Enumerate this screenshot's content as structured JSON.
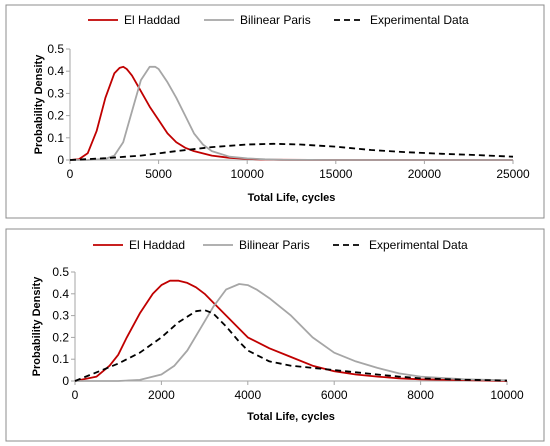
{
  "chart_data": [
    {
      "type": "line",
      "title": "",
      "xlabel": "Total Life, cycles",
      "ylabel": "Probability Density",
      "xlim": [
        0,
        25000
      ],
      "ylim": [
        0,
        0.5
      ],
      "xticks": [
        0,
        5000,
        10000,
        15000,
        20000,
        25000
      ],
      "yticks": [
        0,
        0.1,
        0.2,
        0.3,
        0.4,
        0.5
      ],
      "xtick_labels": [
        "0",
        "5000",
        "10000",
        "15000",
        "20000",
        "25000"
      ],
      "ytick_labels": [
        "0",
        "0.1",
        "0.2",
        "0.3",
        "0.4",
        "0.5"
      ],
      "grid": false,
      "legend_position": "top",
      "series": [
        {
          "name": "El Haddad",
          "color": "#c00000",
          "style": "solid",
          "x": [
            0,
            500,
            1000,
            1500,
            2000,
            2500,
            2800,
            3000,
            3200,
            3500,
            4000,
            4500,
            5000,
            5500,
            6000,
            6500,
            7000,
            8000,
            9000,
            10000,
            11000,
            12000,
            15000,
            20000,
            25000
          ],
          "y": [
            0,
            0.003,
            0.03,
            0.13,
            0.28,
            0.39,
            0.415,
            0.42,
            0.41,
            0.38,
            0.31,
            0.24,
            0.18,
            0.12,
            0.08,
            0.055,
            0.04,
            0.02,
            0.01,
            0.005,
            0.002,
            0.001,
            0,
            0,
            0
          ]
        },
        {
          "name": "Bilinear Paris",
          "color": "#a6a6a6",
          "style": "solid",
          "x": [
            0,
            1000,
            2000,
            2500,
            3000,
            3500,
            4000,
            4500,
            4800,
            5000,
            5500,
            6000,
            6500,
            7000,
            7500,
            8000,
            9000,
            10000,
            11000,
            12000,
            15000,
            20000,
            25000
          ],
          "y": [
            0,
            0,
            0.005,
            0.02,
            0.08,
            0.22,
            0.36,
            0.42,
            0.42,
            0.41,
            0.35,
            0.28,
            0.2,
            0.12,
            0.07,
            0.04,
            0.015,
            0.007,
            0.003,
            0.001,
            0,
            0,
            0
          ]
        },
        {
          "name": "Experimental Data",
          "color": "#000000",
          "style": "dashed",
          "x": [
            0,
            2000,
            4000,
            6000,
            8000,
            10000,
            11500,
            13000,
            15000,
            17000,
            19000,
            21000,
            23000,
            25000
          ],
          "y": [
            0,
            0.008,
            0.02,
            0.04,
            0.058,
            0.07,
            0.073,
            0.07,
            0.06,
            0.045,
            0.035,
            0.028,
            0.022,
            0.015
          ]
        }
      ]
    },
    {
      "type": "line",
      "title": "",
      "xlabel": "Total Life, cycles",
      "ylabel": "Probability Density",
      "xlim": [
        0,
        10000
      ],
      "ylim": [
        0,
        0.5
      ],
      "xticks": [
        0,
        2000,
        4000,
        6000,
        8000,
        10000
      ],
      "yticks": [
        0,
        0.1,
        0.2,
        0.3,
        0.4,
        0.5
      ],
      "xtick_labels": [
        "0",
        "2000",
        "4000",
        "6000",
        "8000",
        "10000"
      ],
      "ytick_labels": [
        "0",
        "0.1",
        "0.2",
        "0.3",
        "0.4",
        "0.5"
      ],
      "grid": false,
      "legend_position": "top",
      "series": [
        {
          "name": "El Haddad",
          "color": "#c00000",
          "style": "solid",
          "x": [
            0,
            500,
            800,
            1000,
            1200,
            1500,
            1800,
            2000,
            2200,
            2400,
            2600,
            2800,
            3000,
            3200,
            3500,
            3800,
            4000,
            4500,
            5000,
            5500,
            6000,
            6500,
            7000,
            7500,
            8000,
            9000,
            10000
          ],
          "y": [
            0,
            0.02,
            0.07,
            0.12,
            0.2,
            0.31,
            0.4,
            0.44,
            0.46,
            0.46,
            0.45,
            0.43,
            0.4,
            0.36,
            0.3,
            0.24,
            0.2,
            0.15,
            0.11,
            0.07,
            0.045,
            0.03,
            0.02,
            0.012,
            0.008,
            0.004,
            0
          ]
        },
        {
          "name": "Bilinear Paris",
          "color": "#a6a6a6",
          "style": "solid",
          "x": [
            0,
            1000,
            1500,
            2000,
            2300,
            2600,
            2900,
            3200,
            3500,
            3800,
            4000,
            4200,
            4500,
            5000,
            5500,
            6000,
            6500,
            7000,
            7500,
            8000,
            9000,
            10000
          ],
          "y": [
            0,
            0,
            0.005,
            0.03,
            0.07,
            0.14,
            0.24,
            0.34,
            0.42,
            0.445,
            0.44,
            0.42,
            0.38,
            0.3,
            0.2,
            0.13,
            0.09,
            0.06,
            0.035,
            0.02,
            0.008,
            0.003
          ]
        },
        {
          "name": "Experimental Data",
          "color": "#000000",
          "style": "dashed",
          "x": [
            0,
            500,
            1000,
            1500,
            2000,
            2400,
            2800,
            3000,
            3200,
            3500,
            3800,
            4000,
            4500,
            5000,
            5500,
            6000,
            6500,
            7000,
            7500,
            8000,
            9000,
            10000
          ],
          "y": [
            0,
            0.04,
            0.08,
            0.13,
            0.2,
            0.27,
            0.32,
            0.325,
            0.31,
            0.25,
            0.18,
            0.14,
            0.09,
            0.07,
            0.06,
            0.05,
            0.04,
            0.03,
            0.02,
            0.012,
            0.006,
            0.002
          ]
        }
      ]
    }
  ]
}
